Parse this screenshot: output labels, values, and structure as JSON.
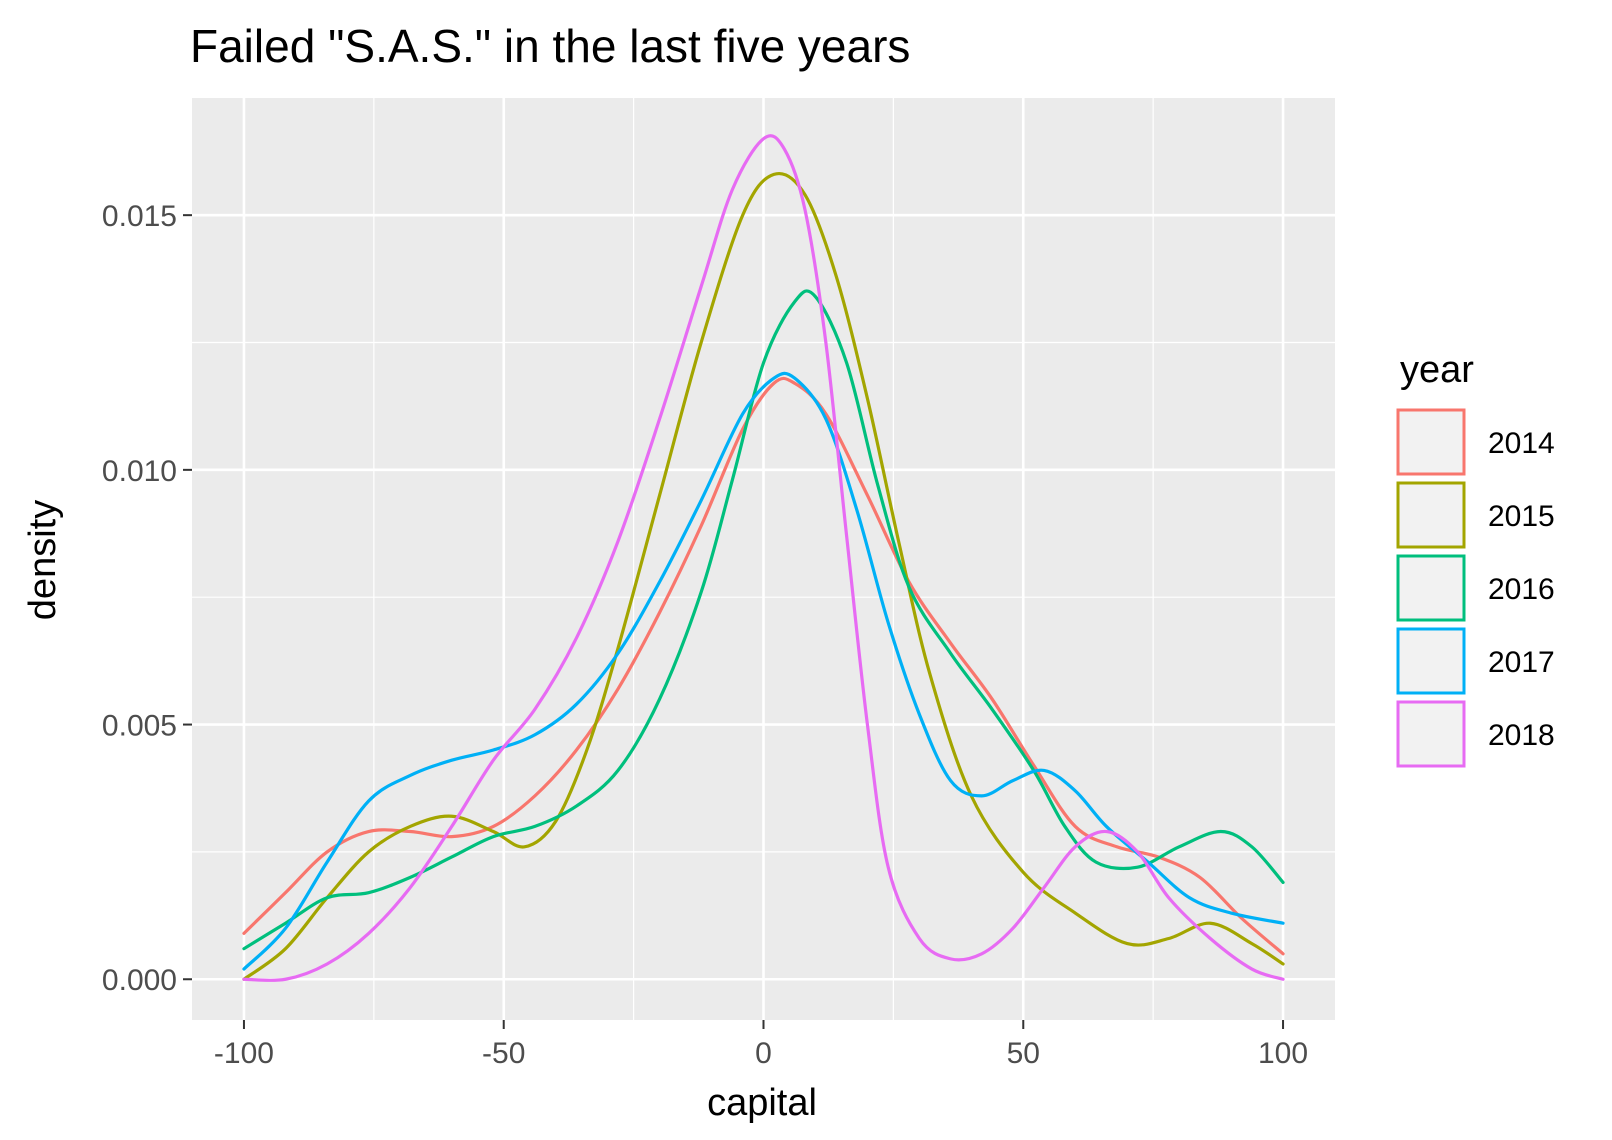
{
  "chart_data": {
    "type": "line",
    "title": "Failed \"S.A.S.\" in the last five years",
    "xlabel": "capital",
    "ylabel": "density",
    "xlim": [
      -110,
      110
    ],
    "ylim": [
      -0.0008,
      0.0173
    ],
    "x_ticks": [
      -100,
      -50,
      0,
      50,
      100
    ],
    "x_tick_labels": [
      "-100",
      "-50",
      "0",
      "50",
      "100"
    ],
    "y_ticks": [
      0.0,
      0.005,
      0.01,
      0.015
    ],
    "y_tick_labels": [
      "0.000",
      "0.005",
      "0.010",
      "0.015"
    ],
    "grid": true,
    "legend": {
      "title": "year",
      "position": "right"
    },
    "series": [
      {
        "name": "2014",
        "color": "#F8766D",
        "points": [
          [
            -100,
            0.0009
          ],
          [
            -92,
            0.0017
          ],
          [
            -84,
            0.0025
          ],
          [
            -76,
            0.0029
          ],
          [
            -68,
            0.0029
          ],
          [
            -60,
            0.0028
          ],
          [
            -52,
            0.003
          ],
          [
            -44,
            0.0036
          ],
          [
            -36,
            0.0045
          ],
          [
            -28,
            0.0057
          ],
          [
            -20,
            0.0072
          ],
          [
            -12,
            0.0089
          ],
          [
            -4,
            0.0108
          ],
          [
            2,
            0.0117
          ],
          [
            6,
            0.0117
          ],
          [
            12,
            0.0111
          ],
          [
            20,
            0.0095
          ],
          [
            28,
            0.0078
          ],
          [
            36,
            0.0066
          ],
          [
            44,
            0.0055
          ],
          [
            52,
            0.0042
          ],
          [
            60,
            0.003
          ],
          [
            68,
            0.0026
          ],
          [
            76,
            0.0024
          ],
          [
            84,
            0.002
          ],
          [
            92,
            0.0012
          ],
          [
            100,
            0.0005
          ]
        ]
      },
      {
        "name": "2015",
        "color": "#A3A500",
        "points": [
          [
            -100,
            0.0
          ],
          [
            -92,
            0.0006
          ],
          [
            -84,
            0.0016
          ],
          [
            -76,
            0.0025
          ],
          [
            -68,
            0.003
          ],
          [
            -60,
            0.0032
          ],
          [
            -52,
            0.0029
          ],
          [
            -46,
            0.0026
          ],
          [
            -40,
            0.0031
          ],
          [
            -34,
            0.0045
          ],
          [
            -28,
            0.0065
          ],
          [
            -20,
            0.0095
          ],
          [
            -12,
            0.0125
          ],
          [
            -4,
            0.015
          ],
          [
            2,
            0.0158
          ],
          [
            8,
            0.0154
          ],
          [
            14,
            0.0138
          ],
          [
            20,
            0.0114
          ],
          [
            26,
            0.0086
          ],
          [
            32,
            0.006
          ],
          [
            40,
            0.0036
          ],
          [
            50,
            0.0021
          ],
          [
            60,
            0.0013
          ],
          [
            70,
            0.0007
          ],
          [
            78,
            0.0008
          ],
          [
            86,
            0.0011
          ],
          [
            94,
            0.0007
          ],
          [
            100,
            0.0003
          ]
        ]
      },
      {
        "name": "2016",
        "color": "#00BF7D",
        "points": [
          [
            -100,
            0.0006
          ],
          [
            -92,
            0.0011
          ],
          [
            -84,
            0.0016
          ],
          [
            -76,
            0.0017
          ],
          [
            -68,
            0.002
          ],
          [
            -60,
            0.0024
          ],
          [
            -52,
            0.0028
          ],
          [
            -44,
            0.003
          ],
          [
            -36,
            0.0034
          ],
          [
            -28,
            0.0041
          ],
          [
            -20,
            0.0055
          ],
          [
            -12,
            0.0076
          ],
          [
            -6,
            0.0098
          ],
          [
            0,
            0.0121
          ],
          [
            6,
            0.0133
          ],
          [
            10,
            0.0134
          ],
          [
            16,
            0.0121
          ],
          [
            22,
            0.0097
          ],
          [
            28,
            0.0077
          ],
          [
            36,
            0.0064
          ],
          [
            44,
            0.0053
          ],
          [
            52,
            0.0041
          ],
          [
            58,
            0.003
          ],
          [
            64,
            0.0023
          ],
          [
            72,
            0.0022
          ],
          [
            80,
            0.0026
          ],
          [
            88,
            0.0029
          ],
          [
            94,
            0.0026
          ],
          [
            100,
            0.0019
          ]
        ]
      },
      {
        "name": "2017",
        "color": "#00B0F6",
        "points": [
          [
            -100,
            0.0002
          ],
          [
            -92,
            0.001
          ],
          [
            -84,
            0.0023
          ],
          [
            -76,
            0.0035
          ],
          [
            -68,
            0.004
          ],
          [
            -60,
            0.0043
          ],
          [
            -52,
            0.0045
          ],
          [
            -44,
            0.0048
          ],
          [
            -36,
            0.0054
          ],
          [
            -28,
            0.0064
          ],
          [
            -20,
            0.0078
          ],
          [
            -12,
            0.0094
          ],
          [
            -4,
            0.0111
          ],
          [
            2,
            0.0118
          ],
          [
            6,
            0.0118
          ],
          [
            12,
            0.011
          ],
          [
            18,
            0.0092
          ],
          [
            24,
            0.007
          ],
          [
            30,
            0.0052
          ],
          [
            36,
            0.0039
          ],
          [
            42,
            0.0036
          ],
          [
            48,
            0.0039
          ],
          [
            54,
            0.0041
          ],
          [
            60,
            0.0037
          ],
          [
            66,
            0.003
          ],
          [
            74,
            0.0023
          ],
          [
            82,
            0.0016
          ],
          [
            90,
            0.0013
          ],
          [
            100,
            0.0011
          ]
        ]
      },
      {
        "name": "2018",
        "color": "#E76BF3",
        "points": [
          [
            -100,
            0.0
          ],
          [
            -92,
            0.0
          ],
          [
            -84,
            0.0003
          ],
          [
            -76,
            0.0009
          ],
          [
            -68,
            0.0018
          ],
          [
            -60,
            0.003
          ],
          [
            -52,
            0.0043
          ],
          [
            -44,
            0.0053
          ],
          [
            -36,
            0.0067
          ],
          [
            -28,
            0.0086
          ],
          [
            -20,
            0.011
          ],
          [
            -12,
            0.0136
          ],
          [
            -6,
            0.0155
          ],
          [
            0,
            0.0165
          ],
          [
            4,
            0.0163
          ],
          [
            8,
            0.0151
          ],
          [
            12,
            0.0125
          ],
          [
            16,
            0.0087
          ],
          [
            20,
            0.005
          ],
          [
            24,
            0.0022
          ],
          [
            30,
            0.0008
          ],
          [
            36,
            0.0004
          ],
          [
            42,
            0.0005
          ],
          [
            48,
            0.001
          ],
          [
            54,
            0.0018
          ],
          [
            60,
            0.0026
          ],
          [
            66,
            0.0029
          ],
          [
            72,
            0.0025
          ],
          [
            78,
            0.0016
          ],
          [
            86,
            0.0008
          ],
          [
            94,
            0.0002
          ],
          [
            100,
            0.0
          ]
        ]
      }
    ]
  }
}
